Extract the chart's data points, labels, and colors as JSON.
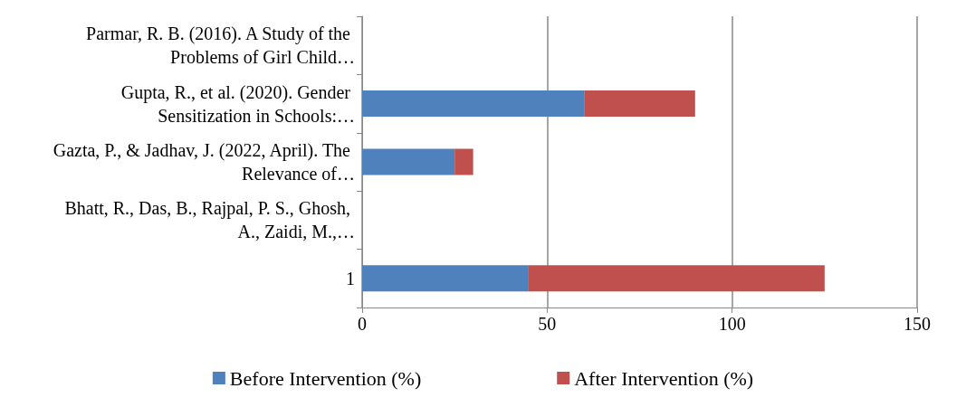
{
  "chart_data": {
    "type": "bar",
    "orientation": "horizontal",
    "stacked": true,
    "categories": [
      "Parmar, R. B. (2016). A Study of the Problems of Girl Child…",
      "Gupta, R., et al. (2020). Gender Sensitization in Schools:…",
      "Gazta, P., & Jadhav, J. (2022, April). The Relevance of…",
      "Bhatt, R., Das, B., Rajpal, P. S., Ghosh, A., Zaidi, M.,…",
      "1"
    ],
    "series": [
      {
        "name": "Before Intervention (%)",
        "color": "#4f81bd",
        "values": [
          null,
          60,
          25,
          null,
          45
        ]
      },
      {
        "name": "After Intervention (%)",
        "color": "#c0504d",
        "values": [
          null,
          30,
          5,
          null,
          80
        ]
      }
    ],
    "xlim": [
      0,
      150
    ],
    "xticks": [
      0,
      50,
      100,
      150
    ],
    "grid": "x",
    "legend": "bottom"
  }
}
